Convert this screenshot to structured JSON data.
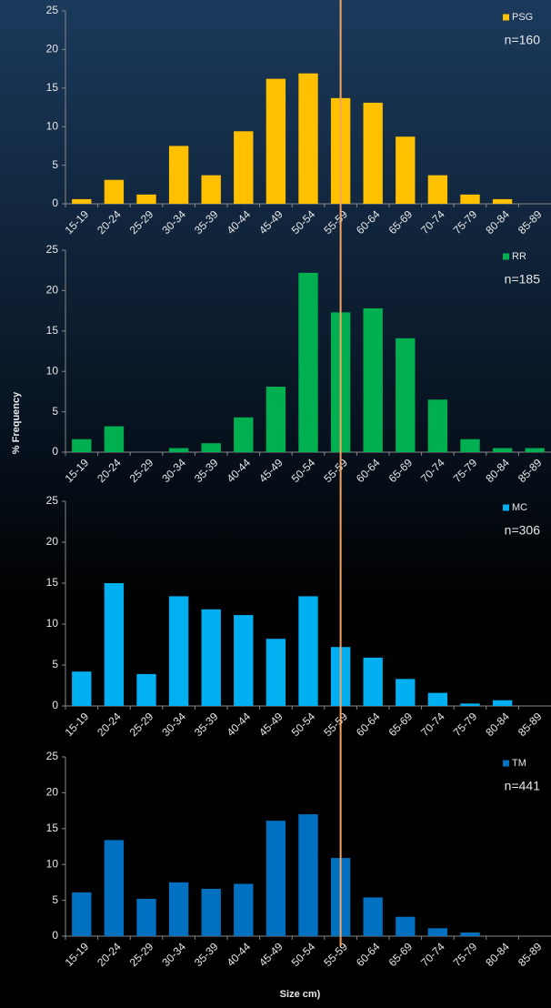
{
  "ylabel": "% Frequency",
  "xlabel": "Size cm)",
  "chart_data": [
    {
      "type": "bar",
      "categories": [
        "15-19",
        "20-24",
        "25-29",
        "30-34",
        "35-39",
        "40-44",
        "45-49",
        "50-54",
        "55-59",
        "60-64",
        "65-69",
        "70-74",
        "75-79",
        "80-84",
        "85-89"
      ],
      "series": [
        {
          "name": "PSG",
          "color": "#ffc000",
          "values": [
            0.6,
            3.1,
            1.2,
            7.5,
            3.7,
            9.4,
            16.2,
            16.9,
            13.7,
            13.1,
            8.7,
            3.7,
            1.2,
            0.6,
            0
          ]
        }
      ],
      "annotation": "n=160",
      "ylim": [
        0,
        25
      ],
      "yticks": [
        0,
        5,
        10,
        15,
        20,
        25
      ],
      "legend": "top-right"
    },
    {
      "type": "bar",
      "categories": [
        "15-19",
        "20-24",
        "25-29",
        "30-34",
        "35-39",
        "40-44",
        "45-49",
        "50-54",
        "55-59",
        "60-64",
        "65-69",
        "70-74",
        "75-79",
        "80-84",
        "85-89"
      ],
      "series": [
        {
          "name": "RR",
          "color": "#00b050",
          "values": [
            1.6,
            3.2,
            0,
            0.5,
            1.1,
            4.3,
            8.1,
            22.2,
            17.3,
            17.8,
            14.1,
            6.5,
            1.6,
            0.5,
            0.5
          ]
        }
      ],
      "annotation": "n=185",
      "ylim": [
        0,
        25
      ],
      "yticks": [
        0,
        5,
        10,
        15,
        20,
        25
      ],
      "legend": "top-right"
    },
    {
      "type": "bar",
      "categories": [
        "15-19",
        "20-24",
        "25-29",
        "30-34",
        "35-39",
        "40-44",
        "45-49",
        "50-54",
        "55-59",
        "60-64",
        "65-69",
        "70-74",
        "75-79",
        "80-84",
        "85-89"
      ],
      "series": [
        {
          "name": "MC",
          "color": "#00b0f0",
          "values": [
            4.2,
            15.0,
            3.9,
            13.4,
            11.8,
            11.1,
            8.2,
            13.4,
            7.2,
            5.9,
            3.3,
            1.6,
            0.3,
            0.7,
            0
          ]
        }
      ],
      "annotation": "n=306",
      "ylim": [
        0,
        25
      ],
      "yticks": [
        0,
        5,
        10,
        15,
        20,
        25
      ],
      "legend": "top-right"
    },
    {
      "type": "bar",
      "categories": [
        "15-19",
        "20-24",
        "25-29",
        "30-34",
        "35-39",
        "40-44",
        "45-49",
        "50-54",
        "55-59",
        "60-64",
        "65-69",
        "70-74",
        "75-79",
        "80-84",
        "85-89"
      ],
      "series": [
        {
          "name": "TM",
          "color": "#0070c0",
          "values": [
            6.1,
            13.4,
            5.2,
            7.5,
            6.6,
            7.3,
            16.1,
            17.0,
            10.9,
            5.4,
            2.7,
            1.1,
            0.5,
            0,
            0
          ]
        }
      ],
      "annotation": "n=441",
      "ylim": [
        0,
        25
      ],
      "yticks": [
        0,
        5,
        10,
        15,
        20,
        25
      ],
      "legend": "top-right"
    }
  ]
}
